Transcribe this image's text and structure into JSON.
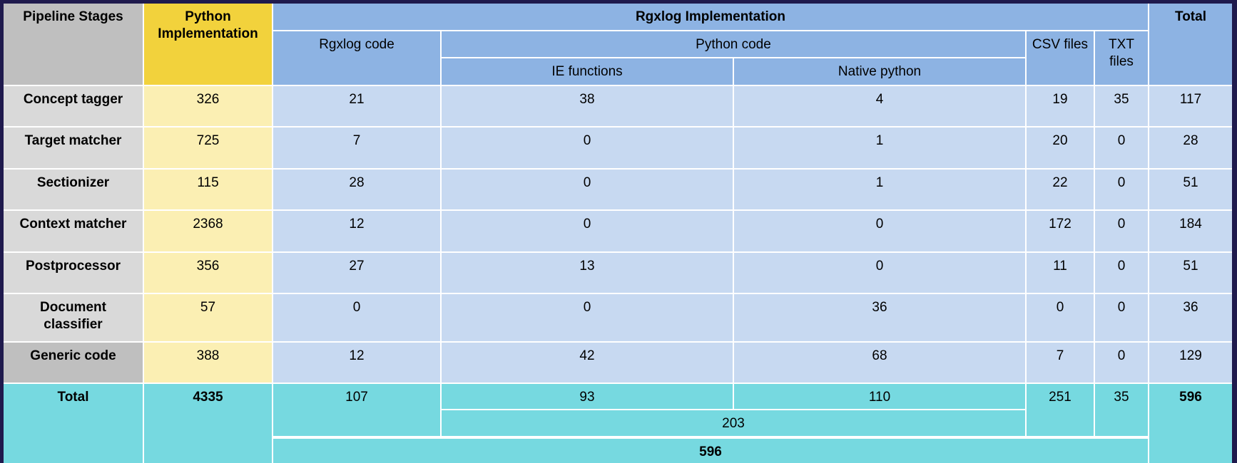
{
  "headers": {
    "pipeline_stages": "Pipeline Stages",
    "python_impl": "Python Implementation",
    "rgxlog_impl": "Rgxlog Implementation",
    "total": "Total",
    "rgxlog_code": "Rgxlog code",
    "python_code": "Python code",
    "ie_functions": "IE functions",
    "native_python": "Native python",
    "csv_files": "CSV files",
    "txt_files": "TXT files"
  },
  "rows": [
    {
      "stage": "Concept tagger",
      "python": "326",
      "rgxlog": "21",
      "ie": "38",
      "native": "4",
      "csv": "19",
      "txt": "35",
      "total": "117"
    },
    {
      "stage": "Target matcher",
      "python": "725",
      "rgxlog": "7",
      "ie": "0",
      "native": "1",
      "csv": "20",
      "txt": "0",
      "total": "28"
    },
    {
      "stage": "Sectionizer",
      "python": "115",
      "rgxlog": "28",
      "ie": "0",
      "native": "1",
      "csv": "22",
      "txt": "0",
      "total": "51"
    },
    {
      "stage": "Context matcher",
      "python": "2368",
      "rgxlog": "12",
      "ie": "0",
      "native": "0",
      "csv": "172",
      "txt": "0",
      "total": "184"
    },
    {
      "stage": "Postprocessor",
      "python": "356",
      "rgxlog": "27",
      "ie": "13",
      "native": "0",
      "csv": "11",
      "txt": "0",
      "total": "51"
    },
    {
      "stage": "Document classifier",
      "python": "57",
      "rgxlog": "0",
      "ie": "0",
      "native": "36",
      "csv": "0",
      "txt": "0",
      "total": "36"
    },
    {
      "stage": "Generic code",
      "python": "388",
      "rgxlog": "12",
      "ie": "42",
      "native": "68",
      "csv": "7",
      "txt": "0",
      "total": "129"
    }
  ],
  "totals": {
    "label": "Total",
    "python": "4335",
    "rgxlog": "107",
    "ie": "93",
    "native": "110",
    "csv": "251",
    "txt": "35",
    "total": "596",
    "python_code_sum": "203",
    "rgxlog_impl_sum": "596"
  }
}
